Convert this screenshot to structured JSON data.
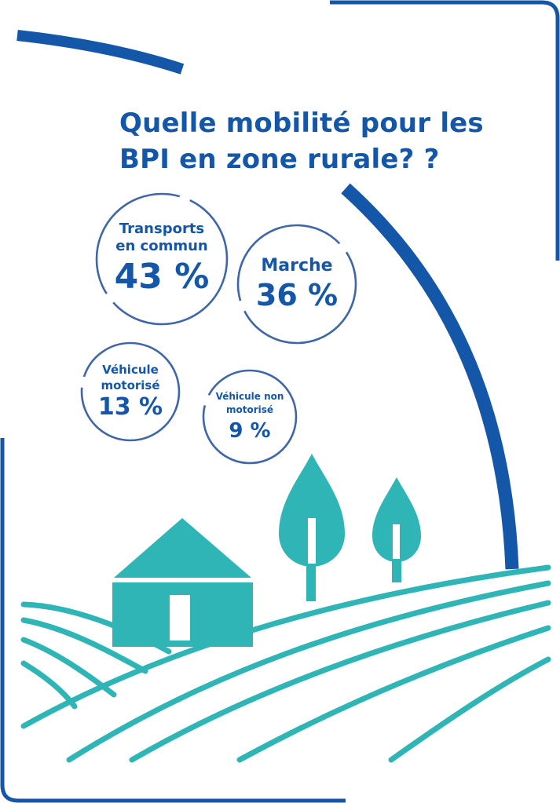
{
  "title": {
    "line1": "Quelle mobilité pour les",
    "line2": "BPI en zone rurale?  ?"
  },
  "stats": [
    {
      "label_line1": "Transports",
      "label_line2": "en commun",
      "value": "43 %"
    },
    {
      "label_line1": "Marche",
      "label_line2": "",
      "value": "36 %"
    },
    {
      "label_line1": "Véhicule",
      "label_line2": "motorisé",
      "value": "13 %"
    },
    {
      "label_line1": "Véhicule non",
      "label_line2": "motorisé",
      "value": "9 %"
    }
  ],
  "colors": {
    "primary_blue": "#1457a8",
    "teal": "#2fb5b5",
    "circle_outline": "#3f66a8"
  },
  "icons": [
    "house-icon",
    "tree-icon",
    "field-furrows-icon"
  ]
}
